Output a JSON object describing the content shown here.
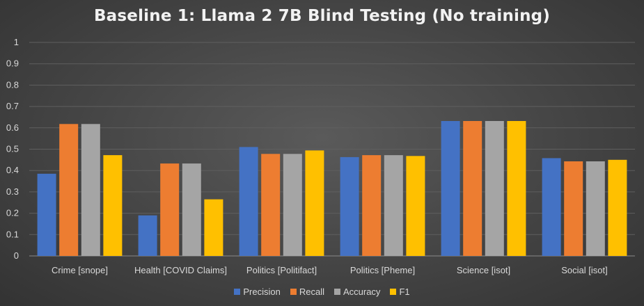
{
  "chart_data": {
    "type": "bar",
    "title": "Baseline 1: Llama 2 7B Blind Testing (No training)",
    "categories": [
      "Crime [snope]",
      "Health [COVID Claims]",
      "Politics [Politifact]",
      "Politics [Pheme]",
      "Science [isot]",
      "Social [isot]"
    ],
    "series": [
      {
        "name": "Precision",
        "color": "#4472c4",
        "values": [
          0.385,
          0.19,
          0.51,
          0.463,
          0.632,
          0.458
        ]
      },
      {
        "name": "Recall",
        "color": "#ed7d31",
        "values": [
          0.618,
          0.433,
          0.478,
          0.472,
          0.632,
          0.443
        ]
      },
      {
        "name": "Accuracy",
        "color": "#a5a5a5",
        "values": [
          0.618,
          0.433,
          0.478,
          0.472,
          0.632,
          0.443
        ]
      },
      {
        "name": "F1",
        "color": "#ffc000",
        "values": [
          0.472,
          0.265,
          0.494,
          0.468,
          0.632,
          0.45
        ]
      }
    ],
    "yticks": [
      "0",
      "0.1",
      "0.2",
      "0.3",
      "0.4",
      "0.5",
      "0.6",
      "0.7",
      "0.8",
      "0.9",
      "1"
    ],
    "ylim": [
      0,
      1
    ],
    "grid": true,
    "legend_position": "bottom"
  }
}
